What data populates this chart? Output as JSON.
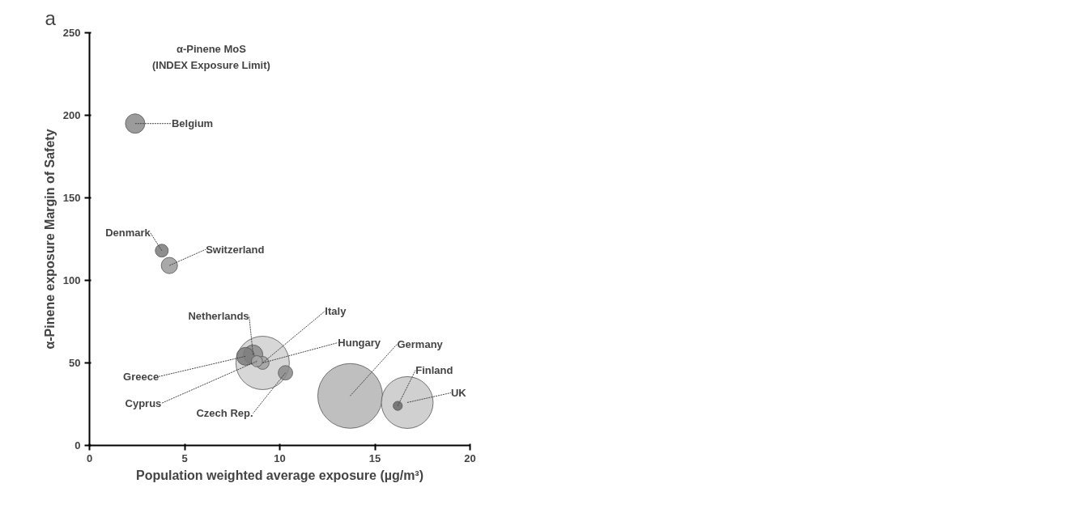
{
  "chart_data": {
    "type": "bubble",
    "title": "α-Pinene MoS\n(INDEX Exposure Limit)",
    "xlabel": "Population weighted average exposure (µg/m³)",
    "ylabel": "α-Pinene exposure Margin of Safety",
    "annotations": [
      "a"
    ],
    "series": [
      {
        "name": "Belgium",
        "color": "#8a8a8a",
        "x": [
          2.4
        ],
        "values": [
          195
        ],
        "sizes": [
          0.09
        ]
      },
      {
        "name": "Denmark",
        "color": "#7a7a7a",
        "x": [
          3.8
        ],
        "values": [
          118
        ],
        "sizes": [
          0.04
        ]
      },
      {
        "name": "Switzerland",
        "color": "#9a9a9a",
        "x": [
          4.2
        ],
        "values": [
          109
        ],
        "sizes": [
          0.063
        ]
      },
      {
        "name": "Netherlands",
        "color": "#8c8c8c",
        "x": [
          8.6
        ],
        "values": [
          55
        ],
        "sizes": [
          0.09
        ]
      },
      {
        "name": "Italy",
        "color": "#d0d0d0",
        "x": [
          9.1
        ],
        "values": [
          50
        ],
        "sizes": [
          0.68
        ]
      },
      {
        "name": "Hungary",
        "color": "#a0a0a0",
        "x": [
          9.1
        ],
        "values": [
          50
        ],
        "sizes": [
          0.04
        ]
      },
      {
        "name": "Germany",
        "color": "#b4b4b4",
        "x": [
          13.7
        ],
        "values": [
          30
        ],
        "sizes": [
          1
        ]
      },
      {
        "name": "Finland",
        "color": "#6a6a6a",
        "x": [
          16.2
        ],
        "values": [
          24
        ],
        "sizes": [
          0.02
        ]
      },
      {
        "name": "UK",
        "color": "#c8c8c8",
        "x": [
          16.7
        ],
        "values": [
          26
        ],
        "sizes": [
          0.64
        ]
      },
      {
        "name": "Greece",
        "color": "#7c7c7c",
        "x": [
          8.2
        ],
        "values": [
          54
        ],
        "sizes": [
          0.076
        ]
      },
      {
        "name": "Cyprus",
        "color": "#a8a8a8",
        "x": [
          8.8
        ],
        "values": [
          51
        ],
        "sizes": [
          0.03
        ]
      },
      {
        "name": "Czech Rep.",
        "color": "#8a8a8a",
        "x": [
          10.3
        ],
        "values": [
          44
        ],
        "sizes": [
          0.05
        ]
      }
    ],
    "xlim": [
      0,
      20
    ],
    "ylim": [
      0,
      250
    ],
    "xticks": [
      0,
      5,
      10,
      15,
      20
    ],
    "yticks": [
      0,
      50,
      100,
      150,
      200,
      250
    ],
    "grid": false,
    "legend": false
  }
}
